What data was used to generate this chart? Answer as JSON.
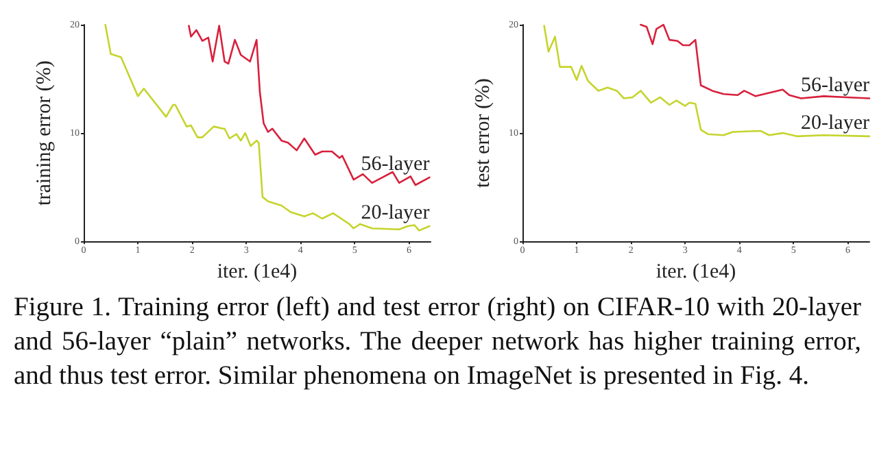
{
  "chart_data": [
    {
      "type": "line",
      "xlabel": "iter. (1e4)",
      "ylabel": "training error (%)",
      "xlim": [
        0,
        6.4
      ],
      "ylim": [
        0,
        20
      ],
      "xticks": [
        0,
        1,
        2,
        3,
        4,
        5,
        6
      ],
      "yticks": [
        0,
        10,
        20
      ],
      "grid": false,
      "legend": false,
      "marker": "none",
      "line_style": "solid",
      "annotations": [
        "Figure 1. Training error (left) and test error (right) on CIFAR-10 with 20-layer and 56-layer “plain” networks. The deeper network has higher training error, and thus test error.  Similar phenomena on ImageNet is presented in Fig. 4."
      ],
      "series": [
        {
          "name": "20-layer",
          "color": "#c5d42c",
          "x": [
            0.4,
            0.5,
            0.69,
            1.0,
            1.11,
            1.52,
            1.65,
            1.69,
            1.9,
            1.98,
            2.1,
            2.19,
            2.4,
            2.57,
            2.6,
            2.69,
            2.82,
            2.9,
            2.98,
            3.08,
            3.19,
            3.23,
            3.3,
            3.4,
            3.65,
            3.82,
            4.07,
            4.23,
            4.4,
            4.6,
            4.9,
            4.98,
            5.1,
            5.32,
            5.82,
            5.98,
            6.1,
            6.19,
            6.38
          ],
          "values": [
            20,
            17.3,
            17,
            13.4,
            14.1,
            11.5,
            12.6,
            12.6,
            10.6,
            10.7,
            9.6,
            9.6,
            10.6,
            10.4,
            10.4,
            9.5,
            9.9,
            9.3,
            10,
            8.8,
            9.3,
            9.1,
            4.1,
            3.7,
            3.3,
            2.7,
            2.3,
            2.6,
            2.1,
            2.6,
            1.6,
            1.2,
            1.6,
            1.2,
            1.1,
            1.4,
            1.5,
            1,
            1.4
          ]
        },
        {
          "name": "56-layer",
          "color": "#d8203c",
          "x": [
            1.94,
            1.98,
            2.08,
            2.19,
            2.3,
            2.38,
            2.5,
            2.6,
            2.67,
            2.79,
            2.9,
            3.07,
            3.19,
            3.25,
            3.32,
            3.4,
            3.48,
            3.65,
            3.77,
            3.93,
            4.07,
            4.27,
            4.4,
            4.58,
            4.72,
            4.77,
            4.98,
            5.15,
            5.32,
            5.7,
            5.82,
            6.03,
            6.12,
            6.38
          ],
          "values": [
            19.9,
            18.9,
            19.5,
            18.5,
            18.8,
            16.6,
            19.9,
            16.6,
            16.4,
            18.6,
            17.2,
            16.6,
            18.6,
            13.8,
            10.9,
            10.1,
            10.4,
            9.3,
            9.1,
            8.4,
            9.5,
            8,
            8.3,
            8.3,
            7.7,
            7.9,
            5.7,
            6.2,
            5.4,
            6.4,
            5.4,
            6,
            5.2,
            5.9
          ]
        }
      ]
    },
    {
      "type": "line",
      "xlabel": "iter. (1e4)",
      "ylabel": "test error (%)",
      "xlim": [
        0,
        6.4
      ],
      "ylim": [
        0,
        20
      ],
      "xticks": [
        0,
        1,
        2,
        3,
        4,
        5,
        6
      ],
      "yticks": [
        0,
        10,
        20
      ],
      "grid": false,
      "legend": false,
      "marker": "none",
      "line_style": "solid",
      "series": [
        {
          "name": "20-layer",
          "color": "#c5d42c",
          "x": [
            0.4,
            0.48,
            0.6,
            0.69,
            0.9,
            1.0,
            1.09,
            1.21,
            1.4,
            1.57,
            1.74,
            1.87,
            2.03,
            2.18,
            2.37,
            2.54,
            2.71,
            2.84,
            3.0,
            3.08,
            3.19,
            3.29,
            3.42,
            3.71,
            3.88,
            4.39,
            4.55,
            4.8,
            5.06,
            5.56,
            6.4
          ],
          "values": [
            19.9,
            17.5,
            18.9,
            16.1,
            16.1,
            14.9,
            16.2,
            14.8,
            13.9,
            14.2,
            13.9,
            13.2,
            13.3,
            13.9,
            12.8,
            13.3,
            12.6,
            13,
            12.5,
            12.8,
            12.7,
            10.3,
            9.9,
            9.8,
            10.1,
            10.2,
            9.8,
            10,
            9.7,
            9.8,
            9.7
          ]
        },
        {
          "name": "56-layer",
          "color": "#d8203c",
          "x": [
            2.18,
            2.29,
            2.4,
            2.47,
            2.6,
            2.71,
            2.86,
            2.96,
            3.08,
            3.19,
            3.29,
            3.5,
            3.71,
            3.97,
            4.09,
            4.3,
            4.55,
            4.8,
            4.92,
            5.14,
            5.56,
            5.98,
            6.4
          ],
          "values": [
            20,
            19.8,
            18.2,
            19.6,
            20,
            18.6,
            18.5,
            18.1,
            18.1,
            18.6,
            14.4,
            13.9,
            13.6,
            13.5,
            13.9,
            13.4,
            13.7,
            14,
            13.5,
            13.2,
            13.4,
            13.3,
            13.2
          ]
        }
      ]
    }
  ]
}
